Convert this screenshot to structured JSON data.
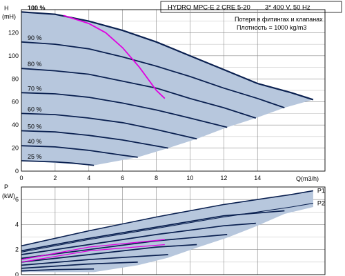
{
  "header": {
    "title": "HYDRO MPC-E 2 CRE 5-20",
    "supply": "3* 400 V, 50 Hz"
  },
  "notes": {
    "line1": "Потеря в фитингах и клапанах",
    "line2": "Плотность = 1000 kg/m3"
  },
  "chart_data": [
    {
      "type": "line",
      "title": "",
      "ylabel": "H",
      "yunit": "(mH)",
      "xlabel": "Q(m3/h)",
      "xlim": [
        0,
        18
      ],
      "ylim": [
        0,
        140
      ],
      "xticks": [
        "0",
        "2",
        "4",
        "6",
        "8",
        "10",
        "12",
        "14"
      ],
      "yticks": [
        "0",
        "20",
        "40",
        "60",
        "80",
        "100",
        "120"
      ],
      "grid": true,
      "colors": {
        "curve": "#0a2050",
        "area": "#b7c7dd",
        "system": "#e000e0"
      },
      "speed_curves": [
        {
          "label": "100 %",
          "q": [
            0,
            2,
            4,
            6,
            8,
            10,
            12,
            14,
            16,
            17.3
          ],
          "h": [
            138,
            136,
            130,
            122,
            112,
            100,
            88,
            76,
            68,
            62
          ]
        },
        {
          "label": "90 %",
          "q": [
            0,
            2,
            4,
            6,
            8,
            10,
            12,
            14,
            15.6
          ],
          "h": [
            112,
            110,
            106,
            99,
            91,
            82,
            72,
            63,
            55
          ]
        },
        {
          "label": "80 %",
          "q": [
            0,
            2,
            4,
            6,
            8,
            10,
            12,
            13.9
          ],
          "h": [
            89,
            87,
            84,
            78,
            72,
            63,
            55,
            46
          ]
        },
        {
          "label": "70 %",
          "q": [
            0,
            2,
            4,
            6,
            8,
            10,
            12.2
          ],
          "h": [
            68,
            67,
            64,
            59,
            53,
            46,
            38
          ]
        },
        {
          "label": "60 %",
          "q": [
            0,
            2,
            4,
            6,
            8,
            10.4
          ],
          "h": [
            50,
            49,
            46,
            42,
            36,
            28
          ]
        },
        {
          "label": "50 %",
          "q": [
            0,
            2,
            4,
            6,
            8.7
          ],
          "h": [
            35,
            34,
            31,
            27,
            20
          ]
        },
        {
          "label": "40 %",
          "q": [
            0,
            2,
            4,
            5.9,
            6.9
          ],
          "h": [
            22,
            21,
            18,
            14,
            12
          ]
        },
        {
          "label": "25 %",
          "q": [
            0,
            2,
            3,
            4.3
          ],
          "h": [
            9,
            8,
            7,
            5
          ]
        }
      ],
      "system_curve": {
        "q": [
          2.5,
          4,
          5,
          6,
          7,
          8,
          8.5
        ],
        "h": [
          135,
          128,
          120,
          107,
          90,
          70,
          63
        ]
      }
    },
    {
      "type": "line",
      "title": "",
      "ylabel": "P",
      "yunit": "(kW)",
      "xlim": [
        0,
        18
      ],
      "ylim": [
        0,
        7
      ],
      "yticks": [
        "0",
        "2",
        "4",
        "6"
      ],
      "grid": true,
      "series": [
        {
          "name": "P1",
          "q": [
            0,
            4,
            8,
            12,
            16,
            17.3
          ],
          "p": [
            2.3,
            3.5,
            4.6,
            5.6,
            6.4,
            6.7
          ]
        },
        {
          "name": "P2",
          "q": [
            0,
            4,
            8,
            12,
            16,
            17.3
          ],
          "p": [
            1.8,
            2.8,
            3.7,
            4.6,
            5.4,
            5.7
          ]
        }
      ],
      "reduced_speed_lines": [
        {
          "q": [
            0,
            4,
            8,
            12,
            15.6
          ],
          "p": [
            1.9,
            2.9,
            3.8,
            4.7,
            5.1
          ]
        },
        {
          "q": [
            0,
            4,
            8,
            12,
            13.9
          ],
          "p": [
            1.6,
            2.4,
            3.2,
            3.9,
            4.1
          ]
        },
        {
          "q": [
            0,
            4,
            8,
            12.2
          ],
          "p": [
            1.3,
            2.0,
            2.7,
            3.2
          ]
        },
        {
          "q": [
            0,
            4,
            8,
            10.4
          ],
          "p": [
            1.0,
            1.6,
            2.2,
            2.4
          ]
        },
        {
          "q": [
            0,
            4,
            8.7
          ],
          "p": [
            0.75,
            1.2,
            1.6
          ]
        },
        {
          "q": [
            0,
            4,
            6.9
          ],
          "p": [
            0.5,
            0.85,
            1.0
          ]
        },
        {
          "q": [
            0,
            2,
            4.3
          ],
          "p": [
            0.3,
            0.4,
            0.45
          ]
        }
      ],
      "system_lines": [
        {
          "q": [
            0,
            4,
            8.5
          ],
          "p": [
            1.2,
            2.2,
            2.8
          ]
        },
        {
          "q": [
            0,
            4,
            8.5
          ],
          "p": [
            1.0,
            1.9,
            2.4
          ]
        }
      ]
    }
  ]
}
